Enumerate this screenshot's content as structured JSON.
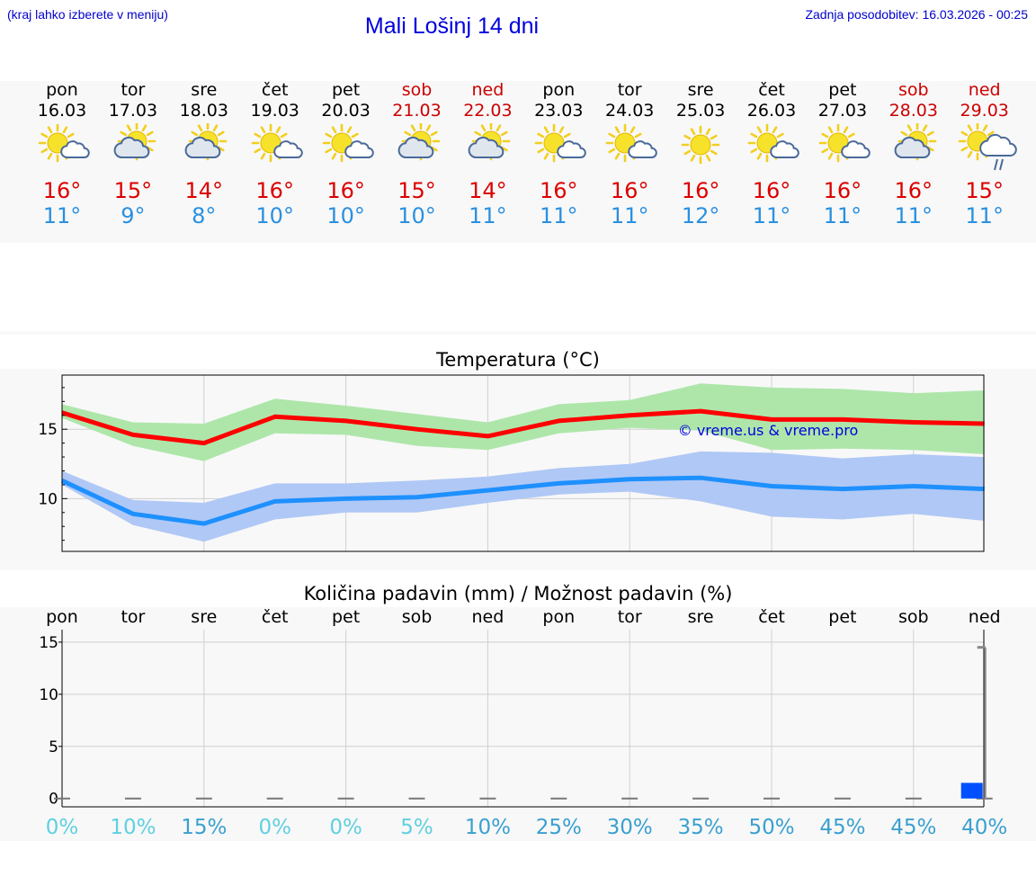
{
  "header": {
    "hint": "(kraj lahko izberete v meniju)",
    "title": "Mali Lošinj 14 dni",
    "updated": "Zadnja posodobitev: 16.03.2026 - 00:25"
  },
  "days": [
    {
      "name": "pon",
      "date": "16.03",
      "max": "16°",
      "min": "11°",
      "icon": "sun-cloud-icon",
      "weekend": false
    },
    {
      "name": "tor",
      "date": "17.03",
      "max": "15°",
      "min": "9°",
      "icon": "cloud-sun-icon",
      "weekend": false
    },
    {
      "name": "sre",
      "date": "18.03",
      "max": "14°",
      "min": "8°",
      "icon": "cloud-sun-icon",
      "weekend": false
    },
    {
      "name": "čet",
      "date": "19.03",
      "max": "16°",
      "min": "10°",
      "icon": "sun-cloud-icon",
      "weekend": false
    },
    {
      "name": "pet",
      "date": "20.03",
      "max": "16°",
      "min": "10°",
      "icon": "sun-cloud-icon",
      "weekend": false
    },
    {
      "name": "sob",
      "date": "21.03",
      "max": "15°",
      "min": "10°",
      "icon": "cloud-sun-icon",
      "weekend": true
    },
    {
      "name": "ned",
      "date": "22.03",
      "max": "14°",
      "min": "11°",
      "icon": "cloud-sun-icon",
      "weekend": true
    },
    {
      "name": "pon",
      "date": "23.03",
      "max": "16°",
      "min": "11°",
      "icon": "sun-cloud-icon",
      "weekend": false
    },
    {
      "name": "tor",
      "date": "24.03",
      "max": "16°",
      "min": "11°",
      "icon": "sun-cloud-icon",
      "weekend": false
    },
    {
      "name": "sre",
      "date": "25.03",
      "max": "16°",
      "min": "12°",
      "icon": "sun-icon",
      "weekend": false
    },
    {
      "name": "čet",
      "date": "26.03",
      "max": "16°",
      "min": "11°",
      "icon": "sun-cloud-icon",
      "weekend": false
    },
    {
      "name": "pet",
      "date": "27.03",
      "max": "16°",
      "min": "11°",
      "icon": "sun-cloud-icon",
      "weekend": false
    },
    {
      "name": "sob",
      "date": "28.03",
      "max": "16°",
      "min": "11°",
      "icon": "cloud-sun-icon",
      "weekend": true
    },
    {
      "name": "ned",
      "date": "29.03",
      "max": "15°",
      "min": "11°",
      "icon": "sun-rain-cloud-icon",
      "weekend": true
    }
  ],
  "colors": {
    "max_line": "#ff0000",
    "max_band": "#aee6aa",
    "min_line": "#1e90ff",
    "min_band": "#b0c8f5",
    "precip_bar": "#0050ff",
    "pct_light": "#5fd0e0",
    "pct_dark": "#3aa0d0",
    "weekend": "#cc0000"
  },
  "chart_data": [
    {
      "type": "line",
      "title": "Temperatura (°C)",
      "watermark": "© vreme.us & vreme.pro",
      "ylim": [
        6.2,
        18.9
      ],
      "yticks": [
        10,
        15
      ],
      "series": [
        {
          "name": "max",
          "values": [
            16.2,
            14.6,
            14.0,
            15.9,
            15.6,
            15.0,
            14.5,
            15.6,
            16.0,
            16.3,
            15.7,
            15.7,
            15.5,
            15.4
          ],
          "lower": [
            15.8,
            13.8,
            12.7,
            14.7,
            14.6,
            13.8,
            13.5,
            14.7,
            15.1,
            14.9,
            13.5,
            13.6,
            13.5,
            13.2
          ],
          "upper": [
            16.8,
            15.5,
            15.4,
            17.2,
            16.7,
            16.1,
            15.5,
            16.8,
            17.1,
            18.3,
            18.0,
            17.9,
            17.6,
            17.8
          ]
        },
        {
          "name": "min",
          "values": [
            11.3,
            8.9,
            8.2,
            9.8,
            10.0,
            10.1,
            10.6,
            11.1,
            11.4,
            11.5,
            10.9,
            10.7,
            10.9,
            10.7
          ],
          "lower": [
            11.0,
            8.1,
            6.9,
            8.5,
            9.0,
            9.0,
            9.7,
            10.3,
            10.5,
            9.8,
            8.7,
            8.5,
            8.9,
            8.4
          ],
          "upper": [
            12.0,
            9.9,
            9.7,
            11.1,
            11.1,
            11.3,
            11.6,
            12.2,
            12.5,
            13.4,
            13.3,
            12.9,
            13.2,
            13.0
          ]
        }
      ]
    },
    {
      "type": "bar",
      "title": "Količina padavin (mm) / Možnost padavin (%)",
      "categories": [
        "pon",
        "tor",
        "sre",
        "čet",
        "pet",
        "sob",
        "ned",
        "pon",
        "tor",
        "sre",
        "čet",
        "pet",
        "sob",
        "ned"
      ],
      "ylim": [
        -0.8,
        16.2
      ],
      "yticks": [
        0,
        5,
        10,
        15
      ],
      "values": [
        0,
        0,
        0,
        0,
        0,
        0,
        0,
        0,
        0,
        0,
        0,
        0,
        0,
        1.5
      ],
      "max_values": [
        0,
        0,
        0,
        0,
        0,
        0,
        0,
        0,
        0,
        0,
        0,
        0,
        0,
        14.5
      ],
      "chance": [
        "0%",
        "10%",
        "15%",
        "0%",
        "0%",
        "5%",
        "10%",
        "25%",
        "30%",
        "35%",
        "50%",
        "45%",
        "45%",
        "40%"
      ],
      "chance_dark": [
        false,
        false,
        true,
        false,
        false,
        false,
        true,
        true,
        true,
        true,
        true,
        true,
        true,
        true
      ]
    }
  ]
}
